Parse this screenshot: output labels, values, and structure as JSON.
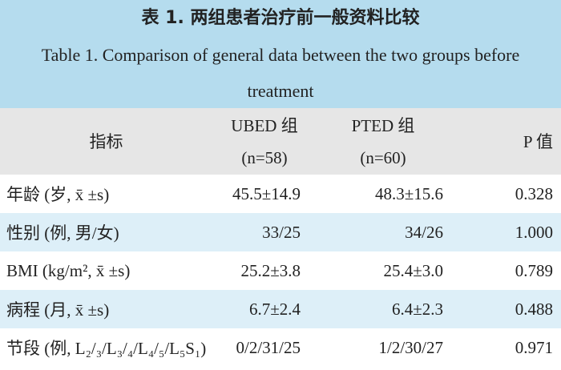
{
  "header": {
    "title_cn": "表 1. 两组患者治疗前一般资料比较",
    "title_en": "Table 1. Comparison of general data between the two groups before treatment"
  },
  "table": {
    "columns": [
      [
        "指标"
      ],
      [
        "UBED 组",
        "(n=58)"
      ],
      [
        "PTED 组",
        "(n=60)"
      ],
      [
        "P 值"
      ]
    ],
    "rows": [
      [
        "年龄 (岁, x̄ ±s)",
        "45.5±14.9",
        "48.3±15.6",
        "0.328"
      ],
      [
        "性别 (例, 男/女)",
        "33/25",
        "34/26",
        "1.000"
      ],
      [
        "BMI (kg/m², x̄ ±s)",
        "25.2±3.8",
        "25.4±3.0",
        "0.789"
      ],
      [
        "病程 (月, x̄ ±s)",
        "6.7±2.4",
        "6.4±2.3",
        "0.488"
      ],
      [
        "节段 (例, L₂/₃/L₃/₄/L₄/₅/L₅S₁)",
        "0/2/31/25",
        "1/2/30/27",
        "0.971"
      ]
    ]
  }
}
